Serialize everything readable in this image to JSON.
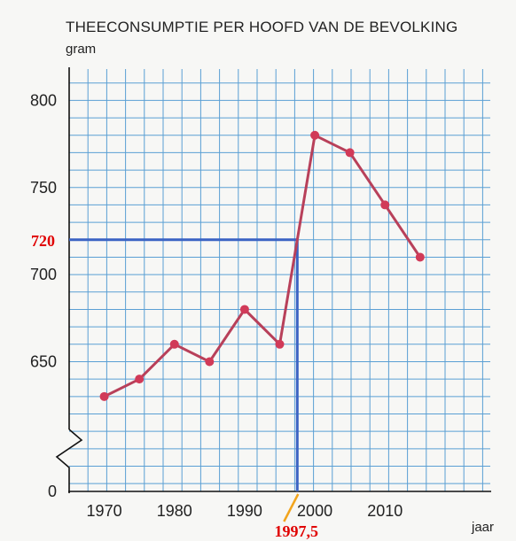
{
  "chart_data": {
    "type": "line",
    "title": "THEECONSUMPTIE PER HOOFD VAN DE BEVOLKING",
    "ylabel": "gram",
    "xlabel": "jaar",
    "x": [
      1970,
      1975,
      1980,
      1985,
      1990,
      1995,
      2000,
      2005,
      2010,
      2015
    ],
    "series": [
      {
        "values": [
          630,
          640,
          660,
          650,
          680,
          660,
          780,
          770,
          740,
          710
        ]
      }
    ],
    "x_ticks": [
      "1970",
      "1980",
      "1990",
      "2000",
      "2010"
    ],
    "y_ticks": [
      "800",
      "750",
      "700",
      "650"
    ],
    "y_zero_label": "0",
    "axis_break": true,
    "xlim": [
      1965,
      2025
    ],
    "ylim": [
      620,
      810
    ],
    "grid": true,
    "annotation": {
      "x": 1997.5,
      "y": 720,
      "x_label": "1997,5",
      "y_label": "720"
    },
    "colors": {
      "line": "#b8405a",
      "marker": "#d13a58",
      "grid": "#5a9fd4",
      "guide": "#3b63c4",
      "annotation_text": "#e00000",
      "pointer": "#f2a41c"
    }
  }
}
